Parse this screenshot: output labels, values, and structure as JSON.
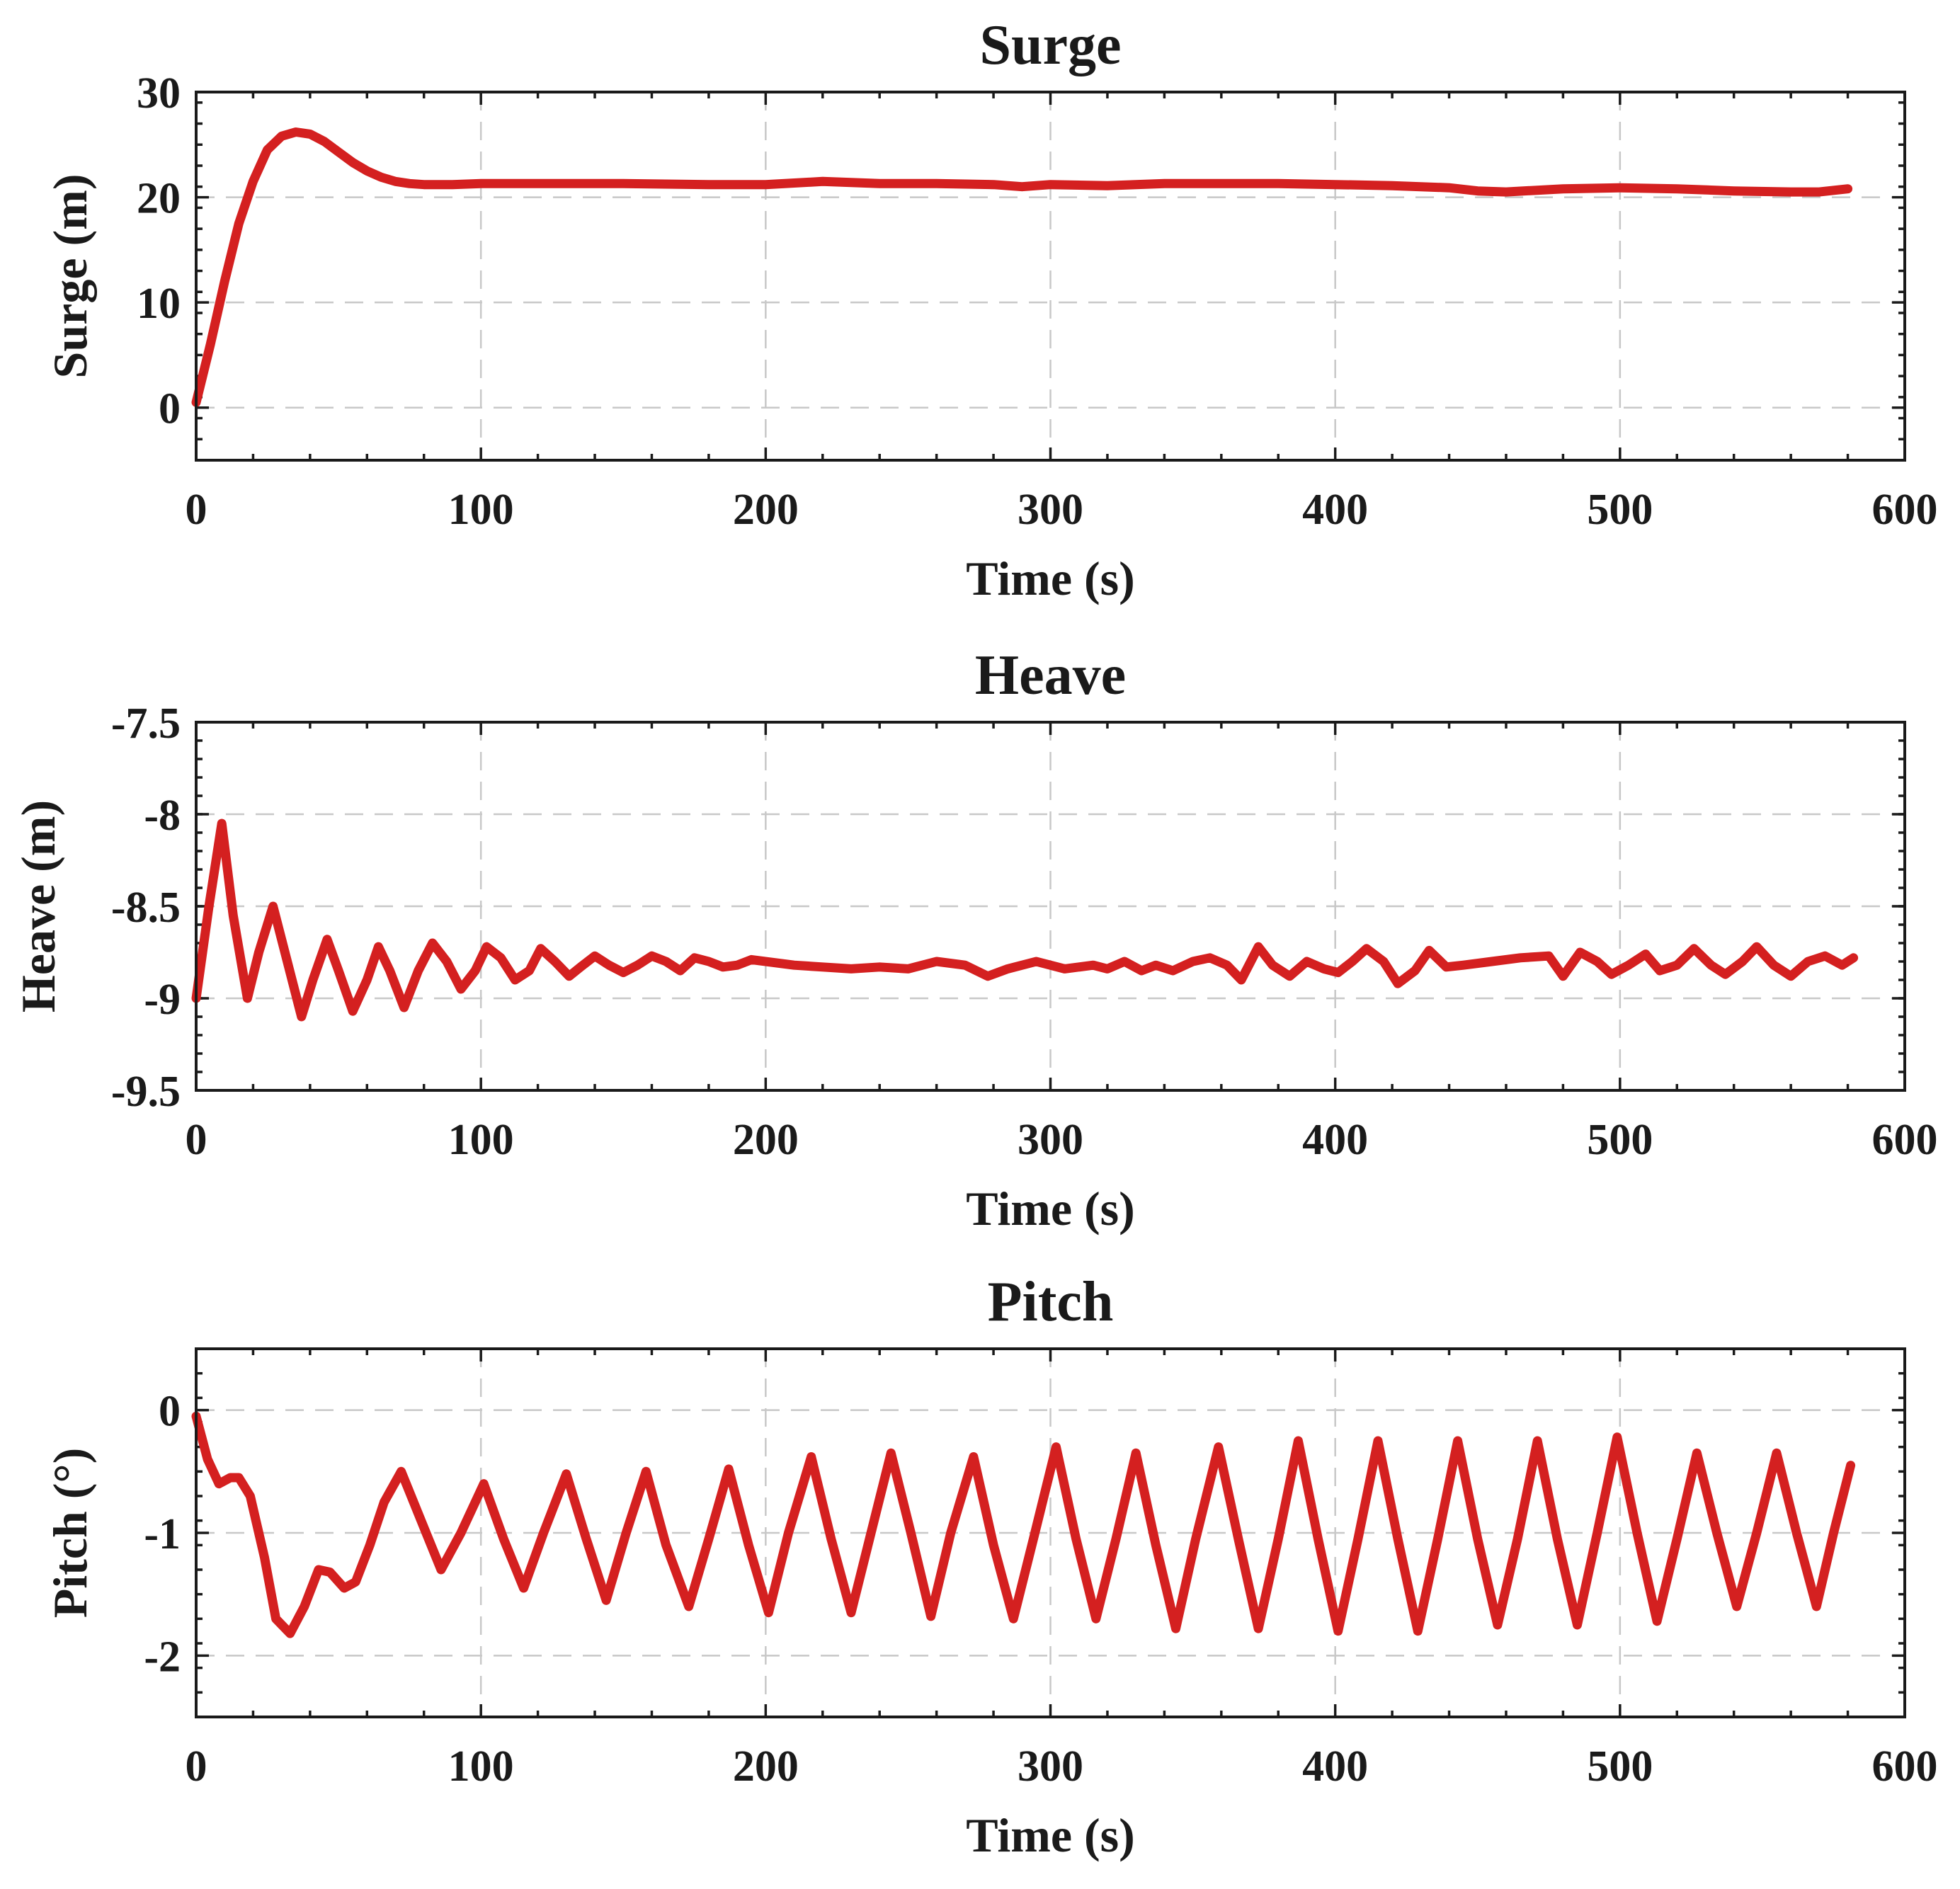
{
  "series_color": "#d42020",
  "chart_data": [
    {
      "type": "line",
      "title": "Surge",
      "xlabel": "Time (s)",
      "ylabel": "Surge (m)",
      "xlim": [
        0,
        600
      ],
      "ylim": [
        -5,
        30
      ],
      "xticks": [
        0,
        100,
        200,
        300,
        400,
        500,
        600
      ],
      "yticks": [
        0,
        10,
        20,
        30
      ],
      "xtick_labels": [
        "0",
        "100",
        "200",
        "300",
        "400",
        "500",
        "600"
      ],
      "ytick_labels": [
        "0",
        "10",
        "20",
        "30"
      ],
      "grid": true,
      "series": [
        {
          "name": "Surge",
          "x": [
            0,
            5,
            10,
            15,
            20,
            25,
            30,
            35,
            40,
            45,
            50,
            55,
            60,
            65,
            70,
            75,
            80,
            90,
            100,
            120,
            150,
            180,
            200,
            220,
            240,
            260,
            280,
            290,
            300,
            320,
            340,
            360,
            380,
            400,
            420,
            440,
            450,
            460,
            480,
            500,
            520,
            540,
            560,
            570,
            580
          ],
          "y": [
            0.5,
            6,
            12,
            17.5,
            21.5,
            24.5,
            25.8,
            26.2,
            26,
            25.3,
            24.3,
            23.3,
            22.5,
            21.9,
            21.5,
            21.3,
            21.2,
            21.2,
            21.3,
            21.3,
            21.3,
            21.2,
            21.2,
            21.5,
            21.3,
            21.3,
            21.2,
            21.0,
            21.2,
            21.1,
            21.3,
            21.3,
            21.3,
            21.2,
            21.1,
            20.9,
            20.6,
            20.5,
            20.8,
            20.9,
            20.8,
            20.6,
            20.5,
            20.5,
            20.8
          ]
        }
      ]
    },
    {
      "type": "line",
      "title": "Heave",
      "xlabel": "Time (s)",
      "ylabel": "Heave (m)",
      "xlim": [
        0,
        600
      ],
      "ylim": [
        -9.5,
        -7.5
      ],
      "xticks": [
        0,
        100,
        200,
        300,
        400,
        500,
        600
      ],
      "yticks": [
        -9.5,
        -9,
        -8.5,
        -8,
        -7.5
      ],
      "xtick_labels": [
        "0",
        "100",
        "200",
        "300",
        "400",
        "500",
        "600"
      ],
      "ytick_labels": [
        "-9.5",
        "-9",
        "-8.5",
        "-8",
        "-7.5"
      ],
      "grid": true,
      "series": [
        {
          "name": "Heave",
          "x": [
            0,
            4.5,
            9,
            13,
            18,
            22,
            27,
            32,
            37,
            41,
            46,
            50,
            55,
            60,
            64,
            68,
            73,
            78,
            83,
            88,
            93,
            98,
            102,
            107,
            112,
            117,
            121,
            126,
            131,
            135,
            140,
            145,
            150,
            155,
            160,
            165,
            170,
            175,
            180,
            185,
            190,
            195,
            210,
            220,
            230,
            240,
            250,
            260,
            270,
            278,
            285,
            295,
            305,
            315,
            320,
            326,
            332,
            337,
            343,
            350,
            356,
            362,
            367,
            373,
            378,
            384,
            390,
            396,
            401,
            406,
            411,
            417,
            422,
            428,
            433,
            439,
            445,
            455,
            465,
            475,
            480,
            486,
            492,
            497,
            503,
            509,
            514,
            520,
            526,
            532,
            537,
            543,
            548,
            554,
            560,
            566,
            572,
            578,
            582
          ],
          "y": [
            -9.0,
            -8.5,
            -8.05,
            -8.55,
            -9.0,
            -8.75,
            -8.5,
            -8.8,
            -9.1,
            -8.9,
            -8.68,
            -8.85,
            -9.07,
            -8.9,
            -8.72,
            -8.85,
            -9.05,
            -8.85,
            -8.7,
            -8.8,
            -8.95,
            -8.85,
            -8.72,
            -8.78,
            -8.9,
            -8.85,
            -8.73,
            -8.8,
            -8.88,
            -8.83,
            -8.77,
            -8.82,
            -8.86,
            -8.82,
            -8.77,
            -8.8,
            -8.85,
            -8.78,
            -8.8,
            -8.83,
            -8.82,
            -8.79,
            -8.82,
            -8.83,
            -8.84,
            -8.83,
            -8.84,
            -8.8,
            -8.82,
            -8.88,
            -8.84,
            -8.8,
            -8.84,
            -8.82,
            -8.84,
            -8.8,
            -8.85,
            -8.82,
            -8.85,
            -8.8,
            -8.78,
            -8.82,
            -8.9,
            -8.72,
            -8.82,
            -8.88,
            -8.8,
            -8.84,
            -8.86,
            -8.8,
            -8.73,
            -8.8,
            -8.92,
            -8.85,
            -8.74,
            -8.83,
            -8.82,
            -8.8,
            -8.78,
            -8.77,
            -8.88,
            -8.75,
            -8.8,
            -8.87,
            -8.82,
            -8.76,
            -8.85,
            -8.82,
            -8.73,
            -8.82,
            -8.87,
            -8.8,
            -8.72,
            -8.82,
            -8.88,
            -8.8,
            -8.77,
            -8.82,
            -8.78
          ]
        }
      ]
    },
    {
      "type": "line",
      "title": "Pitch",
      "xlabel": "Time (s)",
      "ylabel": "Pitch (°)",
      "xlim": [
        0,
        600
      ],
      "ylim": [
        -2.5,
        0.5
      ],
      "xticks": [
        0,
        100,
        200,
        300,
        400,
        500,
        600
      ],
      "yticks": [
        -2,
        -1,
        0
      ],
      "xtick_labels": [
        "0",
        "100",
        "200",
        "300",
        "400",
        "500",
        "600"
      ],
      "ytick_labels": [
        "-2",
        "-1",
        "0"
      ],
      "grid": true,
      "series": [
        {
          "name": "Pitch",
          "x": [
            0,
            4,
            8,
            12,
            15,
            19,
            24,
            28,
            33,
            38,
            43,
            47,
            52,
            56,
            61,
            66,
            72,
            79,
            86,
            93,
            101,
            108,
            115,
            122,
            130,
            137,
            144,
            151,
            158,
            165,
            173,
            180,
            187,
            194,
            201,
            208,
            216,
            223,
            230,
            237,
            244,
            251,
            258,
            265,
            273,
            280,
            287,
            294,
            302,
            309,
            316,
            323,
            330,
            337,
            344,
            351,
            359,
            366,
            373,
            380,
            387,
            394,
            401,
            408,
            415,
            422,
            429,
            436,
            443,
            450,
            457,
            464,
            471,
            478,
            485,
            492,
            499,
            506,
            513,
            520,
            527,
            534,
            541,
            548,
            555,
            562,
            569,
            575,
            581
          ],
          "y": [
            -0.05,
            -0.4,
            -0.6,
            -0.55,
            -0.55,
            -0.7,
            -1.2,
            -1.7,
            -1.82,
            -1.6,
            -1.3,
            -1.32,
            -1.45,
            -1.4,
            -1.1,
            -0.75,
            -0.5,
            -0.9,
            -1.3,
            -1.0,
            -0.6,
            -1.05,
            -1.45,
            -1.0,
            -0.52,
            -1.05,
            -1.55,
            -1.0,
            -0.5,
            -1.1,
            -1.6,
            -1.05,
            -0.48,
            -1.1,
            -1.65,
            -1.0,
            -0.38,
            -1.05,
            -1.65,
            -1.0,
            -0.35,
            -1.0,
            -1.68,
            -1.0,
            -0.38,
            -1.1,
            -1.7,
            -1.05,
            -0.3,
            -1.05,
            -1.7,
            -1.05,
            -0.35,
            -1.1,
            -1.78,
            -1.05,
            -0.3,
            -1.05,
            -1.78,
            -1.05,
            -0.25,
            -1.05,
            -1.8,
            -1.05,
            -0.25,
            -1.05,
            -1.8,
            -1.05,
            -0.25,
            -1.05,
            -1.75,
            -1.05,
            -0.25,
            -1.05,
            -1.75,
            -1.0,
            -0.22,
            -1.0,
            -1.72,
            -1.05,
            -0.35,
            -1.0,
            -1.6,
            -1.0,
            -0.35,
            -1.0,
            -1.6,
            -1.0,
            -0.45
          ]
        }
      ]
    }
  ]
}
